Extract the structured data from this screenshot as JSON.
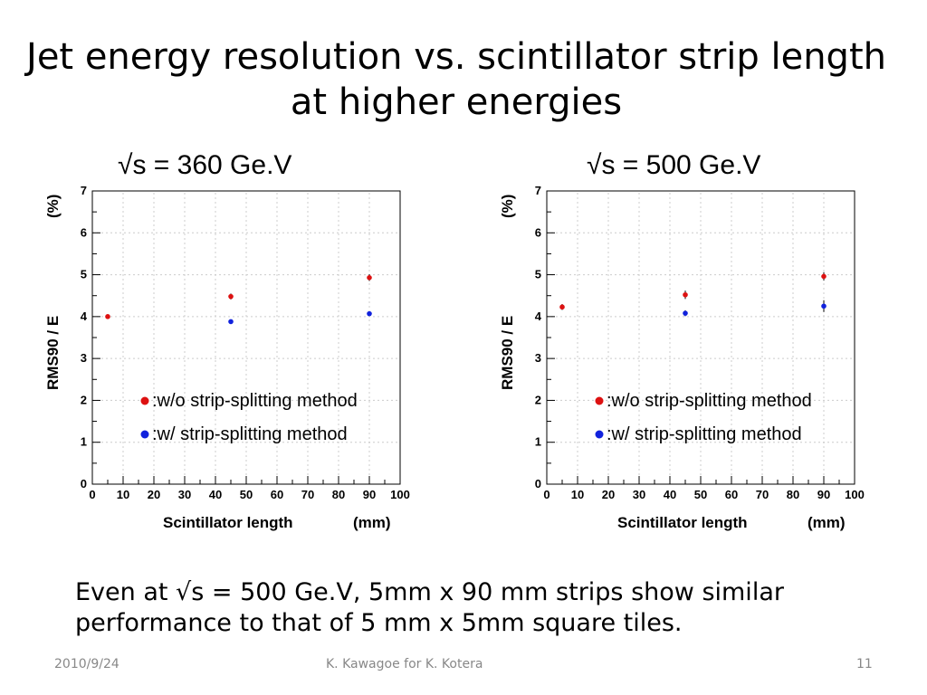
{
  "slide": {
    "title_line1": "Jet energy resolution vs. scintillator strip length",
    "title_line2": "at higher energies",
    "conclusion_line1": "Even at √s = 500 Ge.V,  5mm x 90 mm strips show similar",
    "conclusion_line2": "performance to that of 5 mm x 5mm square tiles.",
    "footer_date": "2010/9/24",
    "footer_author": "K. Kawagoe for K. Kotera",
    "page_number": "11"
  },
  "chart_data": [
    {
      "type": "scatter",
      "title": "√s = 360 Ge.V",
      "xlabel": "Scintillator length",
      "xlabel_unit": "(mm)",
      "ylabel": "RMS90 / E",
      "ylabel_unit": "(%)",
      "xlim": [
        0,
        100
      ],
      "ylim": [
        0,
        7
      ],
      "x_ticks": [
        "0",
        "10",
        "20",
        "30",
        "40",
        "50",
        "60",
        "70",
        "80",
        "90",
        "100"
      ],
      "y_ticks": [
        "0",
        "1",
        "2",
        "3",
        "4",
        "5",
        "6",
        "7"
      ],
      "grid": true,
      "legend": "lower-left",
      "series": [
        {
          "name": ":w/o strip-splitting method",
          "color": "#dd1111",
          "x": [
            5,
            45,
            90
          ],
          "y": [
            4.0,
            4.48,
            4.93
          ],
          "err": [
            0.05,
            0.07,
            0.08
          ]
        },
        {
          "name": ":w/ strip-splitting method",
          "color": "#1122dd",
          "x": [
            45,
            90
          ],
          "y": [
            3.88,
            4.07
          ],
          "err": [
            0.05,
            0.05
          ]
        }
      ]
    },
    {
      "type": "scatter",
      "title": "√s = 500 Ge.V",
      "xlabel": "Scintillator length",
      "xlabel_unit": "(mm)",
      "ylabel": "RMS90 / E",
      "ylabel_unit": "(%)",
      "xlim": [
        0,
        100
      ],
      "ylim": [
        0,
        7
      ],
      "x_ticks": [
        "0",
        "10",
        "20",
        "30",
        "40",
        "50",
        "60",
        "70",
        "80",
        "90",
        "100"
      ],
      "y_ticks": [
        "0",
        "1",
        "2",
        "3",
        "4",
        "5",
        "6",
        "7"
      ],
      "grid": true,
      "legend": "lower-right",
      "series": [
        {
          "name": ":w/o strip-splitting method",
          "color": "#dd1111",
          "x": [
            5,
            45,
            90
          ],
          "y": [
            4.23,
            4.52,
            4.96
          ],
          "err": [
            0.07,
            0.1,
            0.1
          ]
        },
        {
          "name": ":w/ strip-splitting method",
          "color": "#1122dd",
          "x": [
            45,
            90
          ],
          "y": [
            4.08,
            4.25
          ],
          "err": [
            0.07,
            0.14
          ]
        }
      ]
    }
  ]
}
